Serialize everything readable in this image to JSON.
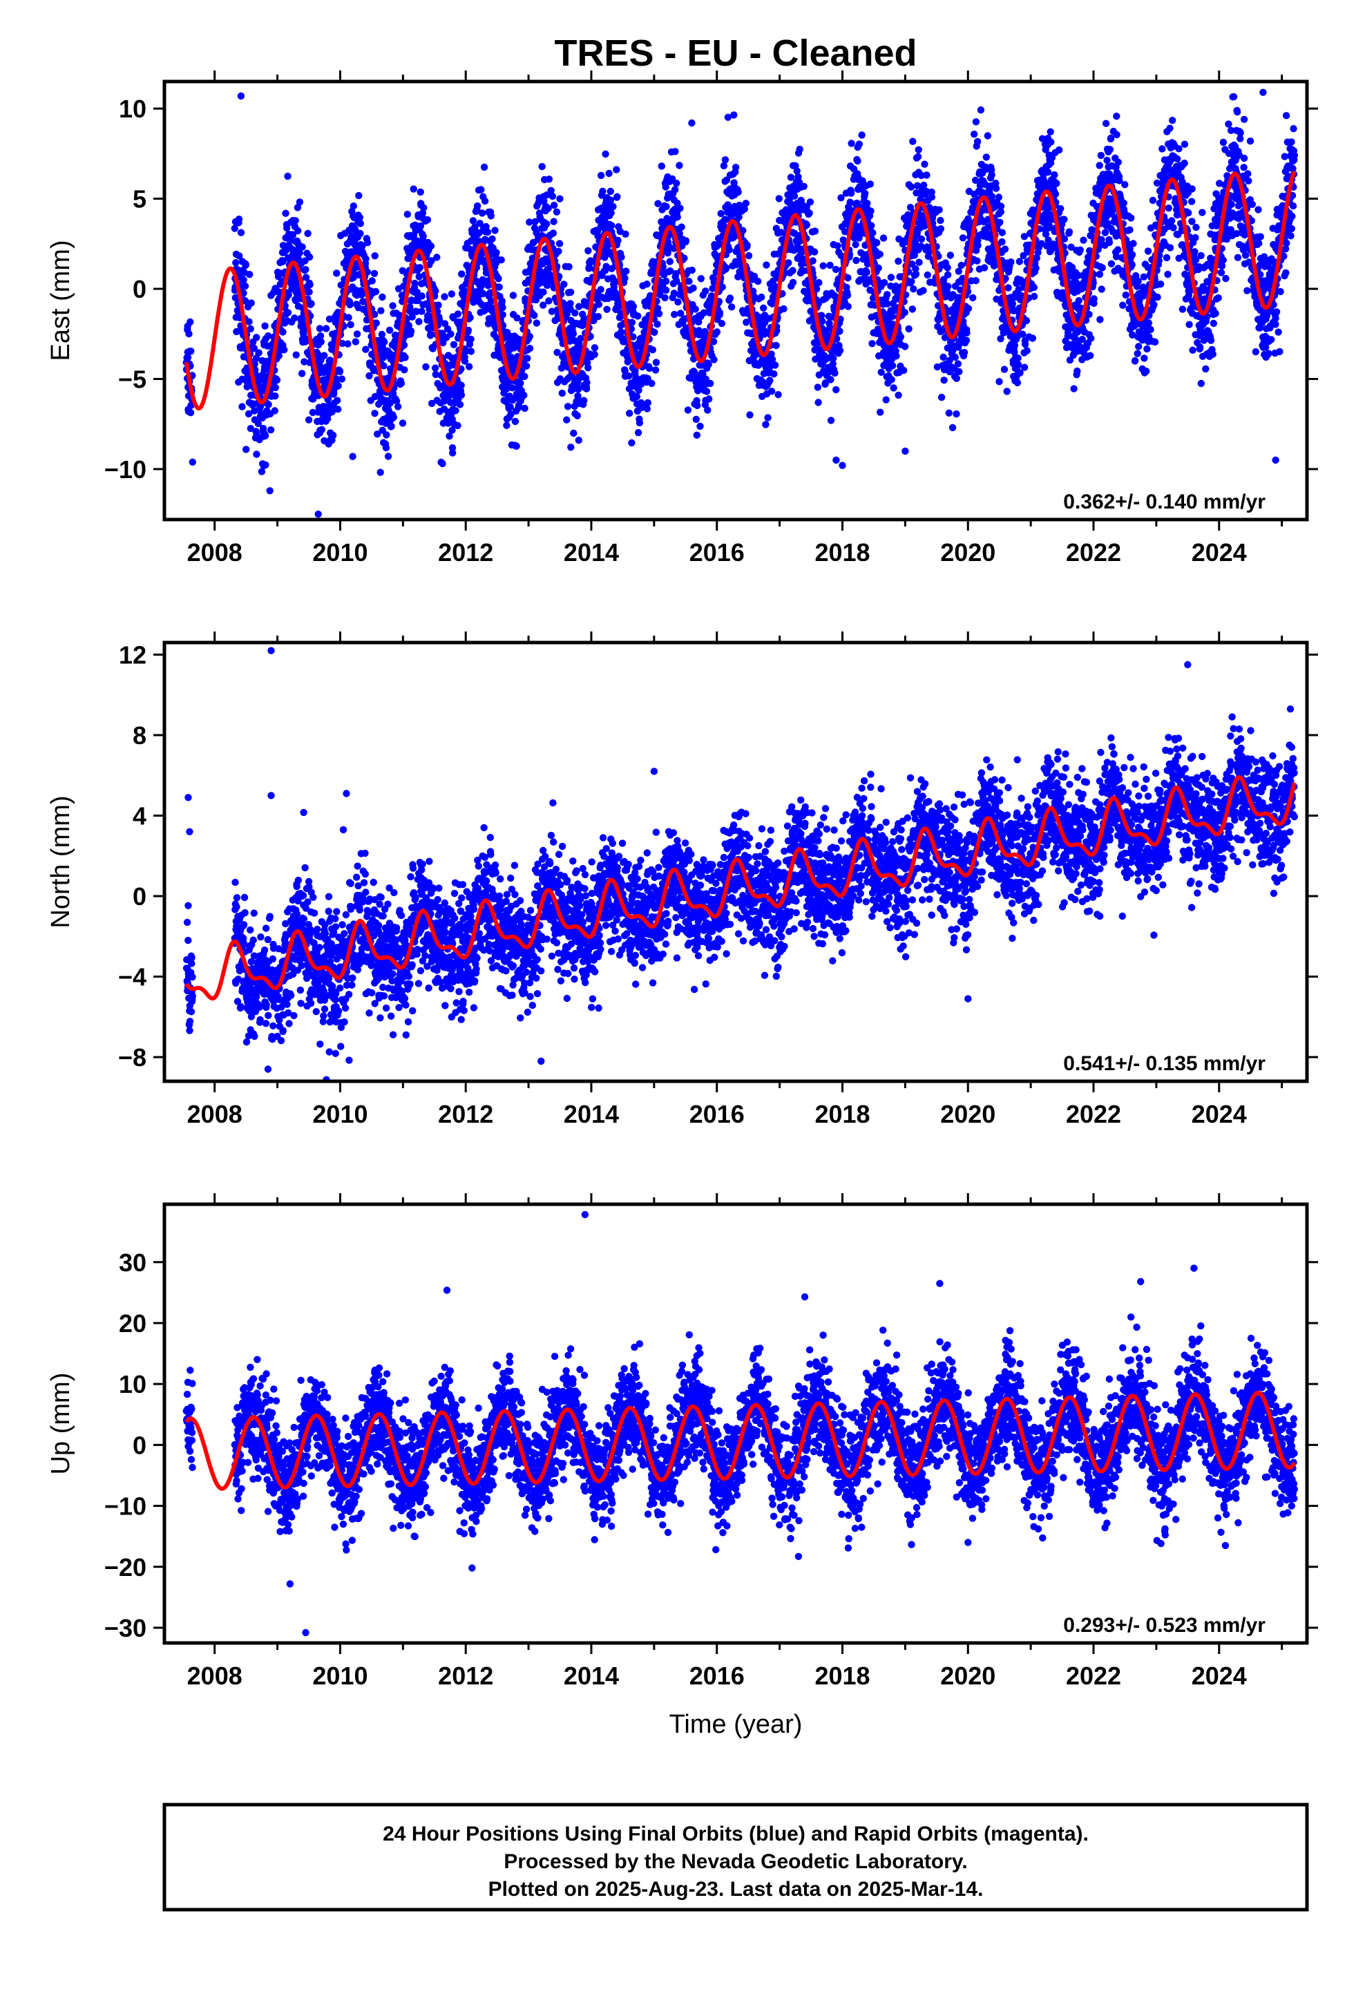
{
  "title": "TRES  - EU - Cleaned",
  "xlabel": "Time (year)",
  "footer": {
    "lines": [
      "24 Hour Positions Using Final Orbits (blue) and Rapid Orbits (magenta).",
      "Processed by the Nevada Geodetic Laboratory.",
      "Plotted on 2025-Aug-23. Last data on 2025-Mar-14."
    ]
  },
  "colors": {
    "points": "#0000ff",
    "model": "#ff0000",
    "frame": "#000000"
  },
  "chart_data": [
    {
      "type": "scatter",
      "name": "East",
      "ylabel": "East (mm)",
      "xlim": [
        2007.2,
        2025.4
      ],
      "ylim": [
        -12.8,
        11.5
      ],
      "yticks": [
        -10,
        -5,
        0,
        5,
        10
      ],
      "xticks": [
        2008,
        2010,
        2012,
        2014,
        2016,
        2018,
        2020,
        2022,
        2024
      ],
      "rate_text": "0.362+/- 0.140 mm/yr",
      "series": [
        {
          "name": "daily positions",
          "style": "points",
          "model": {
            "start": 2007.55,
            "end": 2025.2,
            "base_start": -2.9,
            "base_end": 2.9,
            "amp_start": 3.8,
            "amp_end": 3.8,
            "phase_year": 0.25,
            "semi_amp": 0.0
          },
          "scatter_sd": 1.8,
          "outliers": [
            [
              2008.42,
              10.7
            ],
            [
              2008.88,
              -11.2
            ],
            [
              2009.65,
              -12.5
            ],
            [
              2010.2,
              -9.3
            ],
            [
              2017.9,
              -9.5
            ],
            [
              2018.0,
              -9.8
            ],
            [
              2019.0,
              -9.0
            ],
            [
              2024.7,
              10.9
            ],
            [
              2024.4,
              9.4
            ],
            [
              2015.6,
              9.2
            ],
            [
              2024.9,
              -9.5
            ],
            [
              2013.8,
              -8.4
            ]
          ]
        },
        {
          "name": "model fit",
          "style": "line",
          "model": {
            "start": 2007.55,
            "end": 2025.2,
            "base_start": -2.9,
            "base_end": 2.9,
            "amp_start": 3.8,
            "amp_end": 3.8,
            "phase_year": 0.25,
            "semi_amp": 0.0
          }
        }
      ]
    },
    {
      "type": "scatter",
      "name": "North",
      "ylabel": "North (mm)",
      "xlim": [
        2007.2,
        2025.4
      ],
      "ylim": [
        -9.2,
        12.6
      ],
      "yticks": [
        -8,
        -4,
        0,
        4,
        8,
        12
      ],
      "xticks": [
        2008,
        2010,
        2012,
        2014,
        2016,
        2018,
        2020,
        2022,
        2024
      ],
      "rate_text": "0.541+/- 0.135 mm/yr",
      "series": [
        {
          "name": "daily positions",
          "style": "points",
          "model": {
            "start": 2007.55,
            "end": 2025.2,
            "base_start": -4.2,
            "base_end": 4.8,
            "amp_start": 1.1,
            "amp_end": 1.1,
            "phase_year": 0.35,
            "semi_amp": 0.5
          },
          "scatter_sd": 1.4,
          "outliers": [
            [
              2007.58,
              4.9
            ],
            [
              2007.6,
              3.2
            ],
            [
              2008.9,
              12.2
            ],
            [
              2008.9,
              5.0
            ],
            [
              2010.1,
              5.1
            ],
            [
              2010.05,
              3.3
            ],
            [
              2015.0,
              6.2
            ],
            [
              2023.5,
              11.5
            ],
            [
              2008.85,
              -8.6
            ],
            [
              2013.2,
              -8.2
            ],
            [
              2020.0,
              -5.1
            ],
            [
              2022.1,
              -1.0
            ]
          ]
        },
        {
          "name": "model fit",
          "style": "line",
          "model": {
            "start": 2007.55,
            "end": 2025.2,
            "base_start": -4.2,
            "base_end": 4.8,
            "amp_start": 1.1,
            "amp_end": 1.1,
            "phase_year": 0.35,
            "semi_amp": 0.5
          }
        }
      ]
    },
    {
      "type": "scatter",
      "name": "Up",
      "ylabel": "Up (mm)",
      "xlim": [
        2007.2,
        2025.4
      ],
      "ylim": [
        -32.5,
        39.5
      ],
      "yticks": [
        -30,
        -20,
        -10,
        0,
        10,
        20,
        30
      ],
      "xticks": [
        2008,
        2010,
        2012,
        2014,
        2016,
        2018,
        2020,
        2022,
        2024
      ],
      "rate_text": "0.293+/- 0.523 mm/yr",
      "series": [
        {
          "name": "daily positions",
          "style": "points",
          "model": {
            "start": 2007.55,
            "end": 2025.2,
            "base_start": -1.5,
            "base_end": 2.5,
            "amp_start": 5.8,
            "amp_end": 6.2,
            "phase_year": 0.62,
            "semi_amp": 0.0
          },
          "scatter_sd": 4.2,
          "outliers": [
            [
              2013.9,
              37.8
            ],
            [
              2011.7,
              25.4
            ],
            [
              2017.4,
              24.3
            ],
            [
              2023.6,
              29.0
            ],
            [
              2009.45,
              -30.8
            ],
            [
              2009.2,
              -22.8
            ],
            [
              2012.1,
              -20.2
            ],
            [
              2017.3,
              -18.3
            ],
            [
              2020.0,
              -16.0
            ],
            [
              2024.1,
              -16.5
            ],
            [
              2019.55,
              26.5
            ],
            [
              2022.75,
              26.8
            ]
          ]
        },
        {
          "name": "model fit",
          "style": "line",
          "model": {
            "start": 2007.55,
            "end": 2025.2,
            "base_start": -1.5,
            "base_end": 2.5,
            "amp_start": 5.8,
            "amp_end": 6.2,
            "phase_year": 0.62,
            "semi_amp": 0.0
          }
        }
      ]
    }
  ]
}
